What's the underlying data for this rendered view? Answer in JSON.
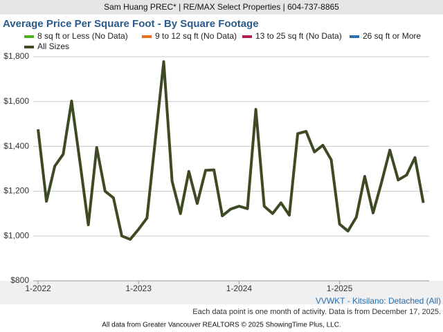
{
  "header": {
    "text": "Sam Huang PREC* | RE/MAX Select Properties | 604-737-8865"
  },
  "chart_data": {
    "type": "line",
    "title": "Average Price Per Square Foot - By Square Footage",
    "categories": [
      "1-2022",
      null,
      null,
      null,
      null,
      null,
      null,
      null,
      null,
      null,
      null,
      null,
      "1-2023",
      null,
      null,
      null,
      null,
      null,
      null,
      null,
      null,
      null,
      null,
      null,
      "1-2024",
      null,
      null,
      null,
      null,
      null,
      null,
      null,
      null,
      null,
      null,
      null,
      "1-2025",
      null,
      null,
      null,
      null,
      null,
      null,
      null,
      null,
      null,
      null
    ],
    "series": [
      {
        "name": "8 sq ft or Less (No Data)",
        "color": "#4caf1c",
        "values": [
          null,
          null,
          null,
          null,
          null,
          null,
          null,
          null,
          null,
          null,
          null,
          null,
          null,
          null,
          null,
          null,
          null,
          null,
          null,
          null,
          null,
          null,
          null,
          null,
          null,
          null,
          null,
          null,
          null,
          null,
          null,
          null,
          null,
          null,
          null,
          null,
          null,
          null,
          null,
          null,
          null,
          null,
          null,
          null,
          null,
          null,
          null
        ]
      },
      {
        "name": "9 to 12 sq ft (No Data)",
        "color": "#e8701a",
        "values": [
          null,
          null,
          null,
          null,
          null,
          null,
          null,
          null,
          null,
          null,
          null,
          null,
          null,
          null,
          null,
          null,
          null,
          null,
          null,
          null,
          null,
          null,
          null,
          null,
          null,
          null,
          null,
          null,
          null,
          null,
          null,
          null,
          null,
          null,
          null,
          null,
          null,
          null,
          null,
          null,
          null,
          null,
          null,
          null,
          null,
          null,
          null
        ]
      },
      {
        "name": "13 to 25 sq ft (No Data)",
        "color": "#b0204a",
        "values": [
          null,
          null,
          null,
          null,
          null,
          null,
          null,
          null,
          null,
          null,
          null,
          null,
          null,
          null,
          null,
          null,
          null,
          null,
          null,
          null,
          null,
          null,
          null,
          null,
          null,
          null,
          null,
          null,
          null,
          null,
          null,
          null,
          null,
          null,
          null,
          null,
          null,
          null,
          null,
          null,
          null,
          null,
          null,
          null,
          null,
          null,
          null
        ]
      },
      {
        "name": "26 sq ft or More",
        "color": "#2a6fb0",
        "values": [
          null,
          null,
          null,
          null,
          null,
          null,
          null,
          null,
          null,
          null,
          null,
          null,
          null,
          null,
          null,
          null,
          null,
          null,
          null,
          null,
          null,
          null,
          null,
          null,
          null,
          null,
          null,
          null,
          null,
          null,
          null,
          null,
          null,
          null,
          null,
          null,
          null,
          null,
          null,
          null,
          null,
          null,
          null,
          null,
          null,
          null,
          null
        ]
      },
      {
        "name": "All Sizes",
        "color": "#3d4a24",
        "values": [
          1476,
          1155,
          1312,
          1365,
          1602,
          1330,
          1050,
          1395,
          1200,
          1170,
          1000,
          985,
          1030,
          1080,
          1430,
          1778,
          1245,
          1100,
          1288,
          1145,
          1293,
          1295,
          1090,
          1120,
          1133,
          1122,
          1565,
          1133,
          1100,
          1148,
          1093,
          1457,
          1467,
          1375,
          1405,
          1340,
          1053,
          1022,
          1084,
          1266,
          1103,
          1238,
          1383,
          1250,
          1272,
          1350,
          1148
        ]
      }
    ],
    "ylim": [
      800,
      1800
    ],
    "yticks": [
      {
        "value": 800,
        "label": "$800"
      },
      {
        "value": 1000,
        "label": "$1,000"
      },
      {
        "value": 1200,
        "label": "$1,200"
      },
      {
        "value": 1400,
        "label": "$1,400"
      },
      {
        "value": 1600,
        "label": "$1,600"
      },
      {
        "value": 1800,
        "label": "$1,800"
      }
    ],
    "grid": true,
    "subtitle": "VVWKT - Kitsilano: Detached (All)",
    "note": "Each data point is one month of activity. Data is from December 17, 2025."
  },
  "footer": {
    "text": "All data from Greater Vancouver REALTORS © 2025 ShowingTime Plus, LLC."
  }
}
